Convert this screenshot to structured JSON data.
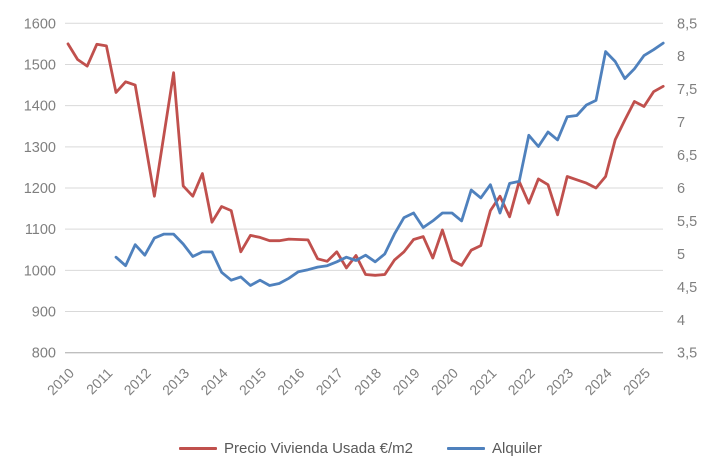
{
  "chart_data": {
    "type": "line",
    "title": "",
    "x_categories": [
      "2010Q1",
      "2010Q2",
      "2010Q3",
      "2010Q4",
      "2011Q1",
      "2011Q2",
      "2011Q3",
      "2011Q4",
      "2012Q1",
      "2012Q2",
      "2012Q3",
      "2012Q4",
      "2013Q1",
      "2013Q2",
      "2013Q3",
      "2013Q4",
      "2014Q1",
      "2014Q2",
      "2014Q3",
      "2014Q4",
      "2015Q1",
      "2015Q2",
      "2015Q3",
      "2015Q4",
      "2016Q1",
      "2016Q2",
      "2016Q3",
      "2016Q4",
      "2017Q1",
      "2017Q2",
      "2017Q3",
      "2017Q4",
      "2018Q1",
      "2018Q2",
      "2018Q3",
      "2018Q4",
      "2019Q1",
      "2019Q2",
      "2019Q3",
      "2019Q4",
      "2020Q1",
      "2020Q2",
      "2020Q3",
      "2020Q4",
      "2021Q1",
      "2021Q2",
      "2021Q3",
      "2021Q4",
      "2022Q1",
      "2022Q2",
      "2022Q3",
      "2022Q4",
      "2023Q1",
      "2023Q2",
      "2023Q3",
      "2023Q4",
      "2024Q1",
      "2024Q2",
      "2024Q3",
      "2024Q4",
      "2025Q1",
      "2025Q2",
      "2025Q3"
    ],
    "x_tick_labels": [
      "2010",
      "2011",
      "2012",
      "2013",
      "2014",
      "2015",
      "2016",
      "2017",
      "2018",
      "2019",
      "2020",
      "2021",
      "2022",
      "2023",
      "2024",
      "2025"
    ],
    "series": [
      {
        "name": "Precio Vivienda Usada €/m2",
        "axis": "left",
        "color": "#C0504D",
        "values": [
          1550,
          1512,
          1496,
          1549,
          1545,
          1432,
          1458,
          1450,
          1315,
          1180,
          1330,
          1480,
          1205,
          1180,
          1235,
          1117,
          1155,
          1145,
          1045,
          1085,
          1080,
          1072,
          1072,
          1076,
          1075,
          1074,
          1028,
          1022,
          1045,
          1006,
          1036,
          990,
          988,
          990,
          1025,
          1045,
          1075,
          1082,
          1030,
          1098,
          1025,
          1012,
          1049,
          1060,
          1145,
          1180,
          1130,
          1216,
          1163,
          1222,
          1208,
          1135,
          1228,
          1220,
          1212,
          1200,
          1228,
          1317,
          1365,
          1410,
          1398,
          1434,
          1447
        ]
      },
      {
        "name": "Alquiler",
        "axis": "right",
        "color": "#4F81BD",
        "values": [
          null,
          null,
          null,
          null,
          null,
          4.95,
          4.82,
          5.14,
          4.98,
          5.24,
          5.3,
          5.3,
          5.15,
          4.96,
          5.03,
          5.03,
          4.72,
          4.6,
          4.65,
          4.52,
          4.6,
          4.52,
          4.55,
          4.63,
          4.73,
          4.76,
          4.8,
          4.82,
          4.88,
          4.95,
          4.9,
          4.98,
          4.88,
          5.0,
          5.3,
          5.55,
          5.62,
          5.4,
          5.5,
          5.62,
          5.62,
          5.5,
          5.97,
          5.85,
          6.05,
          5.62,
          6.07,
          6.1,
          6.8,
          6.63,
          6.85,
          6.73,
          7.08,
          7.1,
          7.26,
          7.33,
          8.07,
          7.92,
          7.66,
          7.81,
          8.01,
          8.1,
          8.2
        ]
      }
    ],
    "left_axis": {
      "min": 800,
      "max": 1600,
      "step": 100,
      "tick_labels": [
        "1600",
        "1500",
        "1400",
        "1300",
        "1200",
        "1100",
        "1000",
        "900",
        "800"
      ]
    },
    "right_axis": {
      "min": 3.5,
      "max": 8.5,
      "step": 0.5,
      "tick_labels": [
        "8,5",
        "8",
        "7,5",
        "7",
        "6,5",
        "6",
        "5,5",
        "5",
        "4,5",
        "4",
        "3,5"
      ]
    },
    "legend_position": "bottom",
    "grid": "horizontal"
  },
  "style_colors": {
    "gridline": "#D9D9D9",
    "axis_line": "#BFBFBF",
    "tick_label": "#7F7F7F",
    "legend_text": "#595959"
  }
}
